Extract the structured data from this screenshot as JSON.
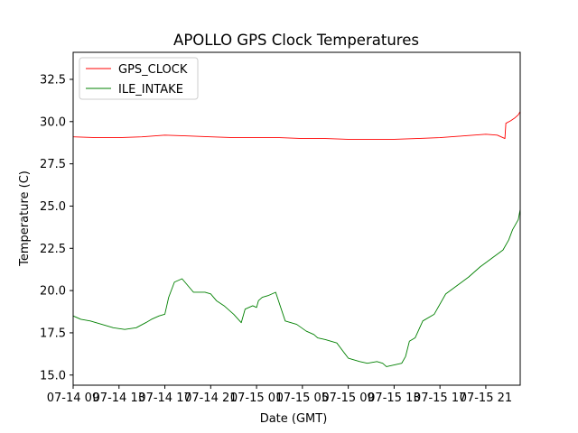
{
  "chart_data": {
    "type": "line",
    "title": "APOLLO GPS Clock Temperatures",
    "xlabel": "Date (GMT)",
    "ylabel": "Temperature (C)",
    "ylim": [
      14.4,
      34.1
    ],
    "yticks": [
      15.0,
      17.5,
      20.0,
      22.5,
      25.0,
      27.5,
      30.0,
      32.5
    ],
    "ytick_labels": [
      "15.0",
      "17.5",
      "20.0",
      "22.5",
      "25.0",
      "27.5",
      "30.0",
      "32.5"
    ],
    "xlim": [
      "07-14 09:00",
      "07-16 00:00"
    ],
    "xticks": [
      "07-14 09:00",
      "07-14 13:00",
      "07-14 17:00",
      "07-14 21:00",
      "07-15 01:00",
      "07-15 05:00",
      "07-15 09:00",
      "07-15 13:00",
      "07-15 17:00",
      "07-15 21:00"
    ],
    "xtick_labels": [
      "07-14 09",
      "07-14 13",
      "07-14 17",
      "07-14 21",
      "07-15 01",
      "07-15 05",
      "07-15 09",
      "07-15 13",
      "07-15 17",
      "07-15 21"
    ],
    "grid": false,
    "legend": "top-left",
    "series": [
      {
        "name": "GPS_CLOCK",
        "color": "#ff0000",
        "x": [
          "07-14 09:00",
          "07-14 11:00",
          "07-14 13:00",
          "07-14 15:00",
          "07-14 17:00",
          "07-14 19:00",
          "07-14 21:00",
          "07-14 23:00",
          "07-15 01:00",
          "07-15 03:00",
          "07-15 05:00",
          "07-15 07:00",
          "07-15 09:00",
          "07-15 11:00",
          "07-15 13:00",
          "07-15 15:00",
          "07-15 17:00",
          "07-15 19:00",
          "07-15 21:00",
          "07-15 22:00",
          "07-15 22:40",
          "07-15 22:45",
          "07-15 23:10",
          "07-15 23:30",
          "07-15 23:50",
          "07-16 00:00"
        ],
        "values": [
          29.1,
          29.05,
          29.05,
          29.1,
          29.2,
          29.15,
          29.1,
          29.05,
          29.05,
          29.05,
          29.0,
          29.0,
          28.95,
          28.95,
          28.95,
          29.0,
          29.05,
          29.15,
          29.25,
          29.2,
          29.0,
          29.9,
          30.05,
          30.2,
          30.4,
          30.6
        ]
      },
      {
        "name": "ILE_INTAKE",
        "color": "#008000",
        "x": [
          "07-14 09:00",
          "07-14 09:40",
          "07-14 10:30",
          "07-14 11:30",
          "07-14 12:30",
          "07-14 13:30",
          "07-14 14:30",
          "07-14 15:20",
          "07-14 15:50",
          "07-14 16:30",
          "07-14 17:00",
          "07-14 17:20",
          "07-14 17:50",
          "07-14 18:30",
          "07-14 19:30",
          "07-14 20:30",
          "07-14 21:00",
          "07-14 21:30",
          "07-14 22:10",
          "07-14 23:00",
          "07-14 23:40",
          "07-15 00:00",
          "07-15 00:40",
          "07-15 01:00",
          "07-15 01:10",
          "07-15 01:30",
          "07-15 02:00",
          "07-15 02:40",
          "07-15 03:30",
          "07-15 04:30",
          "07-15 05:20",
          "07-15 06:00",
          "07-15 06:20",
          "07-15 07:00",
          "07-15 08:00",
          "07-15 09:00",
          "07-15 10:00",
          "07-15 10:40",
          "07-15 11:30",
          "07-15 12:00",
          "07-15 12:20",
          "07-15 13:00",
          "07-15 13:40",
          "07-15 14:00",
          "07-15 14:20",
          "07-15 14:50",
          "07-15 15:30",
          "07-15 16:30",
          "07-15 17:30",
          "07-15 18:30",
          "07-15 19:30",
          "07-15 20:30",
          "07-15 21:30",
          "07-15 22:30",
          "07-15 23:00",
          "07-15 23:20",
          "07-15 23:50",
          "07-16 00:00"
        ],
        "values": [
          18.5,
          18.3,
          18.2,
          18.0,
          17.8,
          17.7,
          17.8,
          18.1,
          18.3,
          18.5,
          18.6,
          19.6,
          20.5,
          20.7,
          19.9,
          19.9,
          19.8,
          19.4,
          19.1,
          18.6,
          18.1,
          18.9,
          19.1,
          19.0,
          19.4,
          19.6,
          19.7,
          19.9,
          18.2,
          18.0,
          17.6,
          17.4,
          17.2,
          17.1,
          16.9,
          16.0,
          15.8,
          15.7,
          15.8,
          15.7,
          15.5,
          15.6,
          15.7,
          16.1,
          17.0,
          17.2,
          18.2,
          18.6,
          19.8,
          20.3,
          20.8,
          21.4,
          21.9,
          22.4,
          23.0,
          23.6,
          24.2,
          24.8
        ]
      }
    ]
  }
}
